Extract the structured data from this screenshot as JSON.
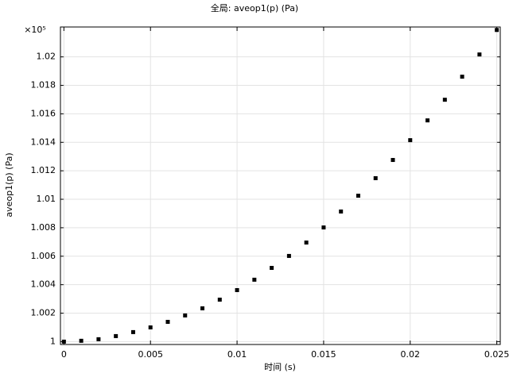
{
  "chart_data": {
    "type": "scatter",
    "title": "全局: aveop1(p) (Pa)",
    "x_label": "时间 (s)",
    "y_label": "aveop1(p) (Pa)",
    "y_scale_label": "×10⁵",
    "x": [
      0,
      0.001,
      0.002,
      0.003,
      0.004,
      0.005,
      0.006,
      0.007,
      0.008,
      0.009,
      0.01,
      0.011,
      0.012,
      0.013,
      0.014,
      0.015,
      0.016,
      0.017,
      0.018,
      0.019,
      0.02,
      0.021,
      0.022,
      0.023,
      0.024,
      0.025
    ],
    "values": [
      1.0,
      1.00006,
      1.00017,
      1.00039,
      1.00067,
      1.001,
      1.00139,
      1.00184,
      1.00234,
      1.00295,
      1.00362,
      1.00435,
      1.00518,
      1.00602,
      1.00696,
      1.00802,
      1.00914,
      1.01025,
      1.01148,
      1.01276,
      1.01415,
      1.01554,
      1.01699,
      1.01861,
      1.02017,
      1.02189
    ],
    "color": "#000000",
    "xlim": [
      -0.0002,
      0.0252
    ],
    "ylim": [
      0.9998,
      1.0221
    ],
    "xticks": [
      0,
      0.005,
      0.01,
      0.015,
      0.02,
      0.025
    ],
    "yticks": [
      1,
      1.002,
      1.004,
      1.006,
      1.008,
      1.01,
      1.012,
      1.014,
      1.016,
      1.018,
      1.02
    ],
    "grid": true
  }
}
